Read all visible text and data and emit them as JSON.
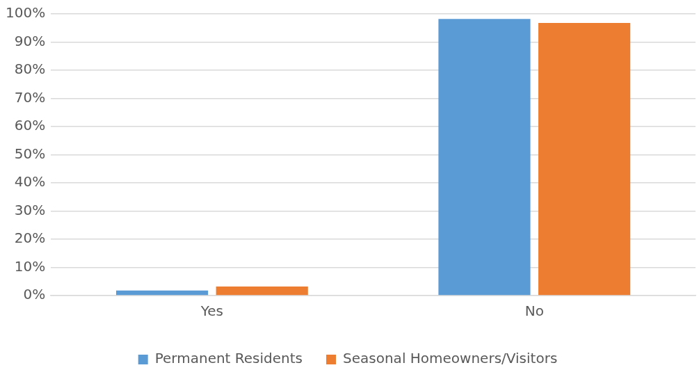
{
  "chart_data": {
    "type": "bar",
    "categories": [
      "Yes",
      "No"
    ],
    "series": [
      {
        "name": "Permanent Residents",
        "color": "#5b9bd5",
        "values": [
          1.8,
          98.2
        ]
      },
      {
        "name": "Seasonal Homeowners/Visitors",
        "color": "#ed7d31",
        "values": [
          3.2,
          96.8
        ]
      }
    ],
    "ylim": [
      0,
      100
    ],
    "yticks": [
      {
        "value": 0,
        "label": "0%"
      },
      {
        "value": 10,
        "label": "10%"
      },
      {
        "value": 20,
        "label": "20%"
      },
      {
        "value": 30,
        "label": "30%"
      },
      {
        "value": 40,
        "label": "40%"
      },
      {
        "value": 50,
        "label": "50%"
      },
      {
        "value": 60,
        "label": "60%"
      },
      {
        "value": 70,
        "label": "70%"
      },
      {
        "value": 80,
        "label": "80%"
      },
      {
        "value": 90,
        "label": "90%"
      },
      {
        "value": 100,
        "label": "100%"
      }
    ],
    "grid": "y",
    "legend": "bottom"
  }
}
